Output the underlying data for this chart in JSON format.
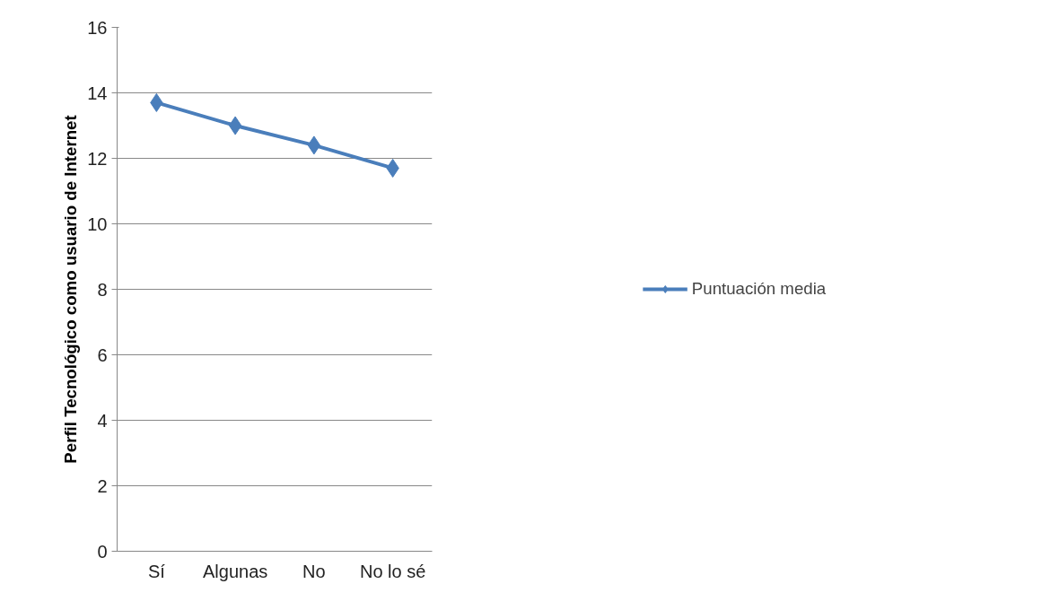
{
  "chart_data": {
    "type": "line",
    "ylabel": "Perfil Tecnológico como usuario de Internet",
    "categories": [
      "Sí",
      "Algunas",
      "No",
      "No lo sé"
    ],
    "series": [
      {
        "name": "Puntuación media",
        "color": "#4a7ebb",
        "values": [
          13.7,
          13.0,
          12.4,
          11.7
        ]
      }
    ],
    "ylim": [
      0,
      16
    ],
    "yticks": [
      0,
      2,
      4,
      6,
      8,
      10,
      12,
      14,
      16
    ],
    "grid": "y",
    "legend": "right",
    "marker": "diamond",
    "line_style": "solid"
  }
}
